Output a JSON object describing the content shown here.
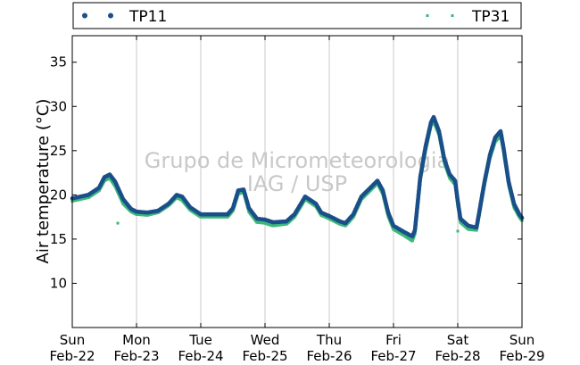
{
  "chart_data": {
    "type": "scatter",
    "title": "",
    "xlabel": "",
    "ylabel": "Air temperature (°C)",
    "ylim": [
      5,
      38
    ],
    "yticks": [
      10,
      15,
      20,
      25,
      30,
      35
    ],
    "xlim_days": [
      "Sun Feb-22 00:00",
      "Sun Feb-29 00:00"
    ],
    "x_ticks": [
      {
        "day": "Sun",
        "date": "Feb-22"
      },
      {
        "day": "Mon",
        "date": "Feb-23"
      },
      {
        "day": "Tue",
        "date": "Feb-24"
      },
      {
        "day": "Wed",
        "date": "Feb-25"
      },
      {
        "day": "Thu",
        "date": "Feb-26"
      },
      {
        "day": "Fri",
        "date": "Feb-27"
      },
      {
        "day": "Sat",
        "date": "Feb-28"
      },
      {
        "day": "Sun",
        "date": "Feb-29"
      }
    ],
    "grid": "vertical",
    "legend_position": "top",
    "watermark": [
      "Grupo de Micrometeorologia",
      "IAG / USP"
    ],
    "series": [
      {
        "name": "TP11",
        "color": "#1a4f8a",
        "marker": "circle",
        "points": [
          [
            "Feb-22 00:00",
            19.6
          ],
          [
            "Feb-22 06:00",
            20.0
          ],
          [
            "Feb-22 10:00",
            20.8
          ],
          [
            "Feb-22 12:00",
            22.0
          ],
          [
            "Feb-22 14:00",
            22.3
          ],
          [
            "Feb-22 16:00",
            21.5
          ],
          [
            "Feb-22 19:00",
            19.5
          ],
          [
            "Feb-22 22:00",
            18.4
          ],
          [
            "Feb-23 00:00",
            18.1
          ],
          [
            "Feb-23 04:00",
            18.0
          ],
          [
            "Feb-23 08:00",
            18.2
          ],
          [
            "Feb-23 12:00",
            19.0
          ],
          [
            "Feb-23 15:00",
            20.0
          ],
          [
            "Feb-23 17:00",
            19.8
          ],
          [
            "Feb-23 20:00",
            18.6
          ],
          [
            "Feb-24 00:00",
            17.8
          ],
          [
            "Feb-24 06:00",
            17.8
          ],
          [
            "Feb-24 10:00",
            17.8
          ],
          [
            "Feb-24 12:00",
            18.5
          ],
          [
            "Feb-24 14:00",
            20.5
          ],
          [
            "Feb-24 16:00",
            20.6
          ],
          [
            "Feb-24 18:00",
            18.5
          ],
          [
            "Feb-24 21:00",
            17.3
          ],
          [
            "Feb-25 00:00",
            17.2
          ],
          [
            "Feb-25 03:00",
            16.9
          ],
          [
            "Feb-25 08:00",
            17.0
          ],
          [
            "Feb-25 11:00",
            17.8
          ],
          [
            "Feb-25 13:00",
            18.8
          ],
          [
            "Feb-25 15:00",
            19.8
          ],
          [
            "Feb-25 17:00",
            19.4
          ],
          [
            "Feb-25 19:00",
            19.0
          ],
          [
            "Feb-25 21:00",
            18.0
          ],
          [
            "Feb-26 00:00",
            17.6
          ],
          [
            "Feb-26 04:00",
            17.0
          ],
          [
            "Feb-26 06:00",
            16.8
          ],
          [
            "Feb-26 09:00",
            17.8
          ],
          [
            "Feb-26 12:00",
            19.8
          ],
          [
            "Feb-26 14:00",
            20.4
          ],
          [
            "Feb-26 16:00",
            21.0
          ],
          [
            "Feb-26 18:00",
            21.6
          ],
          [
            "Feb-26 20:00",
            20.5
          ],
          [
            "Feb-26 22:00",
            18.0
          ],
          [
            "Feb-27 00:00",
            16.5
          ],
          [
            "Feb-27 04:00",
            15.8
          ],
          [
            "Feb-27 07:00",
            15.3
          ],
          [
            "Feb-27 08:00",
            16.0
          ],
          [
            "Feb-27 09:00",
            19.0
          ],
          [
            "Feb-27 10:00",
            22.0
          ],
          [
            "Feb-27 12:00",
            25.5
          ],
          [
            "Feb-27 14:00",
            28.2
          ],
          [
            "Feb-27 15:00",
            28.8
          ],
          [
            "Feb-27 17:00",
            27.2
          ],
          [
            "Feb-27 19:00",
            24.0
          ],
          [
            "Feb-27 21:00",
            22.3
          ],
          [
            "Feb-27 23:00",
            21.6
          ],
          [
            "Feb-28 00:00",
            19.3
          ],
          [
            "Feb-28 01:00",
            17.3
          ],
          [
            "Feb-28 04:00",
            16.5
          ],
          [
            "Feb-28 07:00",
            16.3
          ],
          [
            "Feb-28 08:00",
            18.0
          ],
          [
            "Feb-28 10:00",
            21.5
          ],
          [
            "Feb-28 12:00",
            24.5
          ],
          [
            "Feb-28 14:00",
            26.5
          ],
          [
            "Feb-28 16:00",
            27.2
          ],
          [
            "Feb-28 17:00",
            25.5
          ],
          [
            "Feb-28 19:00",
            21.5
          ],
          [
            "Feb-28 21:00",
            19.0
          ],
          [
            "Feb-28 23:00",
            17.8
          ],
          [
            "Feb-29 00:00",
            17.4
          ]
        ]
      },
      {
        "name": "TP31",
        "color": "#3cb878",
        "marker": "square",
        "points": [
          [
            "Feb-22 00:00",
            19.3
          ],
          [
            "Feb-22 06:00",
            19.7
          ],
          [
            "Feb-22 10:00",
            20.5
          ],
          [
            "Feb-22 12:00",
            21.6
          ],
          [
            "Feb-22 14:00",
            21.9
          ],
          [
            "Feb-22 16:00",
            21.0
          ],
          [
            "Feb-22 19:00",
            19.0
          ],
          [
            "Feb-22 22:00",
            18.1
          ],
          [
            "Feb-23 00:00",
            17.8
          ],
          [
            "Feb-23 04:00",
            17.7
          ],
          [
            "Feb-23 08:00",
            18.0
          ],
          [
            "Feb-23 12:00",
            18.8
          ],
          [
            "Feb-23 15:00",
            19.7
          ],
          [
            "Feb-23 17:00",
            19.4
          ],
          [
            "Feb-23 20:00",
            18.3
          ],
          [
            "Feb-24 00:00",
            17.5
          ],
          [
            "Feb-24 06:00",
            17.5
          ],
          [
            "Feb-24 10:00",
            17.5
          ],
          [
            "Feb-24 12:00",
            18.2
          ],
          [
            "Feb-24 14:00",
            20.1
          ],
          [
            "Feb-24 16:00",
            20.3
          ],
          [
            "Feb-24 18:00",
            18.1
          ],
          [
            "Feb-24 21:00",
            16.9
          ],
          [
            "Feb-25 00:00",
            16.8
          ],
          [
            "Feb-25 03:00",
            16.5
          ],
          [
            "Feb-25 08:00",
            16.7
          ],
          [
            "Feb-25 11:00",
            17.5
          ],
          [
            "Feb-25 13:00",
            18.5
          ],
          [
            "Feb-25 15:00",
            19.5
          ],
          [
            "Feb-25 17:00",
            19.1
          ],
          [
            "Feb-25 19:00",
            18.7
          ],
          [
            "Feb-25 21:00",
            17.7
          ],
          [
            "Feb-26 00:00",
            17.3
          ],
          [
            "Feb-26 04:00",
            16.7
          ],
          [
            "Feb-26 06:00",
            16.5
          ],
          [
            "Feb-26 09:00",
            17.5
          ],
          [
            "Feb-26 12:00",
            19.5
          ],
          [
            "Feb-26 14:00",
            20.1
          ],
          [
            "Feb-26 16:00",
            20.7
          ],
          [
            "Feb-26 18:00",
            21.3
          ],
          [
            "Feb-26 20:00",
            20.1
          ],
          [
            "Feb-26 22:00",
            17.6
          ],
          [
            "Feb-27 00:00",
            16.1
          ],
          [
            "Feb-27 04:00",
            15.4
          ],
          [
            "Feb-27 07:00",
            14.8
          ],
          [
            "Feb-27 08:00",
            15.6
          ],
          [
            "Feb-27 09:00",
            18.6
          ],
          [
            "Feb-27 10:00",
            21.6
          ],
          [
            "Feb-27 12:00",
            25.0
          ],
          [
            "Feb-27 14:00",
            27.8
          ],
          [
            "Feb-27 15:00",
            28.3
          ],
          [
            "Feb-27 17:00",
            26.8
          ],
          [
            "Feb-27 19:00",
            23.6
          ],
          [
            "Feb-27 21:00",
            21.9
          ],
          [
            "Feb-27 23:00",
            21.2
          ],
          [
            "Feb-28 00:00",
            18.8
          ],
          [
            "Feb-28 01:00",
            16.9
          ],
          [
            "Feb-28 04:00",
            16.1
          ],
          [
            "Feb-28 07:00",
            16.0
          ],
          [
            "Feb-28 08:00",
            17.6
          ],
          [
            "Feb-28 10:00",
            21.1
          ],
          [
            "Feb-28 12:00",
            24.1
          ],
          [
            "Feb-28 14:00",
            26.0
          ],
          [
            "Feb-28 16:00",
            26.7
          ],
          [
            "Feb-28 17:00",
            25.1
          ],
          [
            "Feb-28 19:00",
            21.1
          ],
          [
            "Feb-28 21:00",
            18.6
          ],
          [
            "Feb-28 23:00",
            17.5
          ],
          [
            "Feb-29 00:00",
            17.1
          ]
        ],
        "outliers": [
          [
            "Feb-22 17:00",
            16.8
          ],
          [
            "Feb-28 00:00",
            15.9
          ]
        ]
      }
    ]
  }
}
